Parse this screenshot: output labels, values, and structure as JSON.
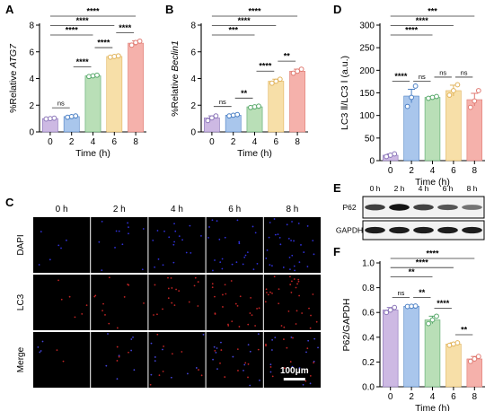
{
  "panel_labels": {
    "A": "A",
    "B": "B",
    "C": "C",
    "D": "D",
    "E": "E",
    "F": "F"
  },
  "colors": {
    "t0": "#cdb9e3",
    "t2": "#a9c6ec",
    "t4": "#b9dfb7",
    "t6": "#f7dfa8",
    "t8": "#f5b1ab",
    "d0": "#8a74b8",
    "d2": "#4a7fc4",
    "d4": "#57a86a",
    "d6": "#e1b35a",
    "d8": "#e07a72"
  },
  "chart_data": [
    {
      "id": "A",
      "type": "bar",
      "categories": [
        "0",
        "2",
        "4",
        "6",
        "8"
      ],
      "values": [
        1.0,
        1.15,
        4.2,
        5.65,
        6.65
      ],
      "errors": [
        0.05,
        0.05,
        0.06,
        0.06,
        0.18
      ],
      "points": [
        [
          0.97,
          1.0,
          1.03
        ],
        [
          1.1,
          1.15,
          1.2
        ],
        [
          4.15,
          4.2,
          4.25
        ],
        [
          5.6,
          5.65,
          5.7
        ],
        [
          6.5,
          6.7,
          6.8
        ]
      ],
      "xlabel": "Time (h)",
      "ylabel_prefix": "%Relative ",
      "ylabel_gene": "ATG7",
      "ylim": [
        0,
        8
      ],
      "yticks": [
        "0",
        "2",
        "4",
        "6",
        "8"
      ],
      "significance": [
        {
          "from": 0,
          "to": 1,
          "label": "ns"
        },
        {
          "from": 1,
          "to": 2,
          "label": "****"
        },
        {
          "from": 2,
          "to": 3,
          "label": "****"
        },
        {
          "from": 3,
          "to": 4,
          "label": "****"
        },
        {
          "from": 0,
          "to": 2,
          "label": "****"
        },
        {
          "from": 0,
          "to": 3,
          "label": "****"
        },
        {
          "from": 0,
          "to": 4,
          "label": "****"
        }
      ]
    },
    {
      "id": "B",
      "type": "bar",
      "categories": [
        "0",
        "2",
        "4",
        "6",
        "8"
      ],
      "values": [
        1.05,
        1.25,
        1.88,
        3.8,
        4.55
      ],
      "errors": [
        0.15,
        0.05,
        0.05,
        0.15,
        0.15
      ],
      "points": [
        [
          0.85,
          1.05,
          1.2
        ],
        [
          1.2,
          1.25,
          1.3
        ],
        [
          1.83,
          1.88,
          1.93
        ],
        [
          3.65,
          3.8,
          3.95
        ],
        [
          4.4,
          4.55,
          4.7
        ]
      ],
      "xlabel": "Time (h)",
      "ylabel_prefix": "%Relative ",
      "ylabel_gene": "Beclin1",
      "ylim": [
        0,
        8
      ],
      "yticks": [
        "0",
        "2",
        "4",
        "6",
        "8"
      ],
      "significance": [
        {
          "from": 0,
          "to": 1,
          "label": "ns"
        },
        {
          "from": 1,
          "to": 2,
          "label": "**"
        },
        {
          "from": 2,
          "to": 3,
          "label": "****"
        },
        {
          "from": 3,
          "to": 4,
          "label": "**"
        },
        {
          "from": 0,
          "to": 2,
          "label": "***"
        },
        {
          "from": 0,
          "to": 3,
          "label": "****"
        },
        {
          "from": 0,
          "to": 4,
          "label": "****"
        }
      ]
    },
    {
      "id": "D",
      "type": "bar",
      "categories": [
        "0",
        "2",
        "4",
        "6",
        "8"
      ],
      "values": [
        12,
        143,
        140,
        155,
        135
      ],
      "errors": [
        3,
        15,
        2,
        12,
        14
      ],
      "points": [
        [
          9,
          12,
          15
        ],
        [
          120,
          140,
          165
        ],
        [
          138,
          140,
          142
        ],
        [
          145,
          155,
          168
        ],
        [
          118,
          132,
          155
        ]
      ],
      "xlabel": "Time (h)",
      "ylabel": "LC3 Ⅱ/LC3 Ⅰ (a.u.)",
      "ylim": [
        0,
        300
      ],
      "yticks": [
        "0",
        "50",
        "100",
        "150",
        "200",
        "250",
        "300"
      ],
      "significance": [
        {
          "from": 0,
          "to": 1,
          "label": "****"
        },
        {
          "from": 1,
          "to": 2,
          "label": "ns"
        },
        {
          "from": 2,
          "to": 3,
          "label": "ns"
        },
        {
          "from": 3,
          "to": 4,
          "label": "ns"
        },
        {
          "from": 0,
          "to": 2,
          "label": "****"
        },
        {
          "from": 0,
          "to": 3,
          "label": "****"
        },
        {
          "from": 0,
          "to": 4,
          "label": "***"
        }
      ]
    },
    {
      "id": "F",
      "type": "bar",
      "categories": [
        "0",
        "2",
        "4",
        "6",
        "8"
      ],
      "values": [
        0.62,
        0.65,
        0.54,
        0.345,
        0.225
      ],
      "errors": [
        0.02,
        0.005,
        0.03,
        0.01,
        0.02
      ],
      "points": [
        [
          0.6,
          0.62,
          0.64
        ],
        [
          0.648,
          0.65,
          0.652
        ],
        [
          0.51,
          0.54,
          0.57
        ],
        [
          0.335,
          0.345,
          0.355
        ],
        [
          0.205,
          0.225,
          0.245
        ]
      ],
      "xlabel": "Time (h)",
      "ylabel": "P62/GAPDH",
      "ylim": [
        0,
        1.0
      ],
      "yticks": [
        "0.0",
        "0.2",
        "0.4",
        "0.6",
        "0.8",
        "1.0"
      ],
      "significance": [
        {
          "from": 0,
          "to": 1,
          "label": "ns"
        },
        {
          "from": 1,
          "to": 2,
          "label": "**"
        },
        {
          "from": 2,
          "to": 3,
          "label": "****"
        },
        {
          "from": 3,
          "to": 4,
          "label": "**"
        },
        {
          "from": 0,
          "to": 2,
          "label": "**"
        },
        {
          "from": 0,
          "to": 3,
          "label": "****"
        },
        {
          "from": 0,
          "to": 4,
          "label": "****"
        }
      ]
    }
  ],
  "microscopy": {
    "columns": [
      "0 h",
      "2 h",
      "4 h",
      "6 h",
      "8 h"
    ],
    "rows": [
      "DAPI",
      "LC3",
      "Merge"
    ],
    "scale_bar": "100μm"
  },
  "western_blot": {
    "lanes": [
      "0 h",
      "2 h",
      "4 h",
      "6 h",
      "8 h"
    ],
    "bands": [
      {
        "name": "P62",
        "intensity": [
          0.72,
          0.95,
          0.7,
          0.6,
          0.45
        ]
      },
      {
        "name": "GAPDH",
        "intensity": [
          0.9,
          0.9,
          0.9,
          0.9,
          0.9
        ]
      }
    ]
  }
}
